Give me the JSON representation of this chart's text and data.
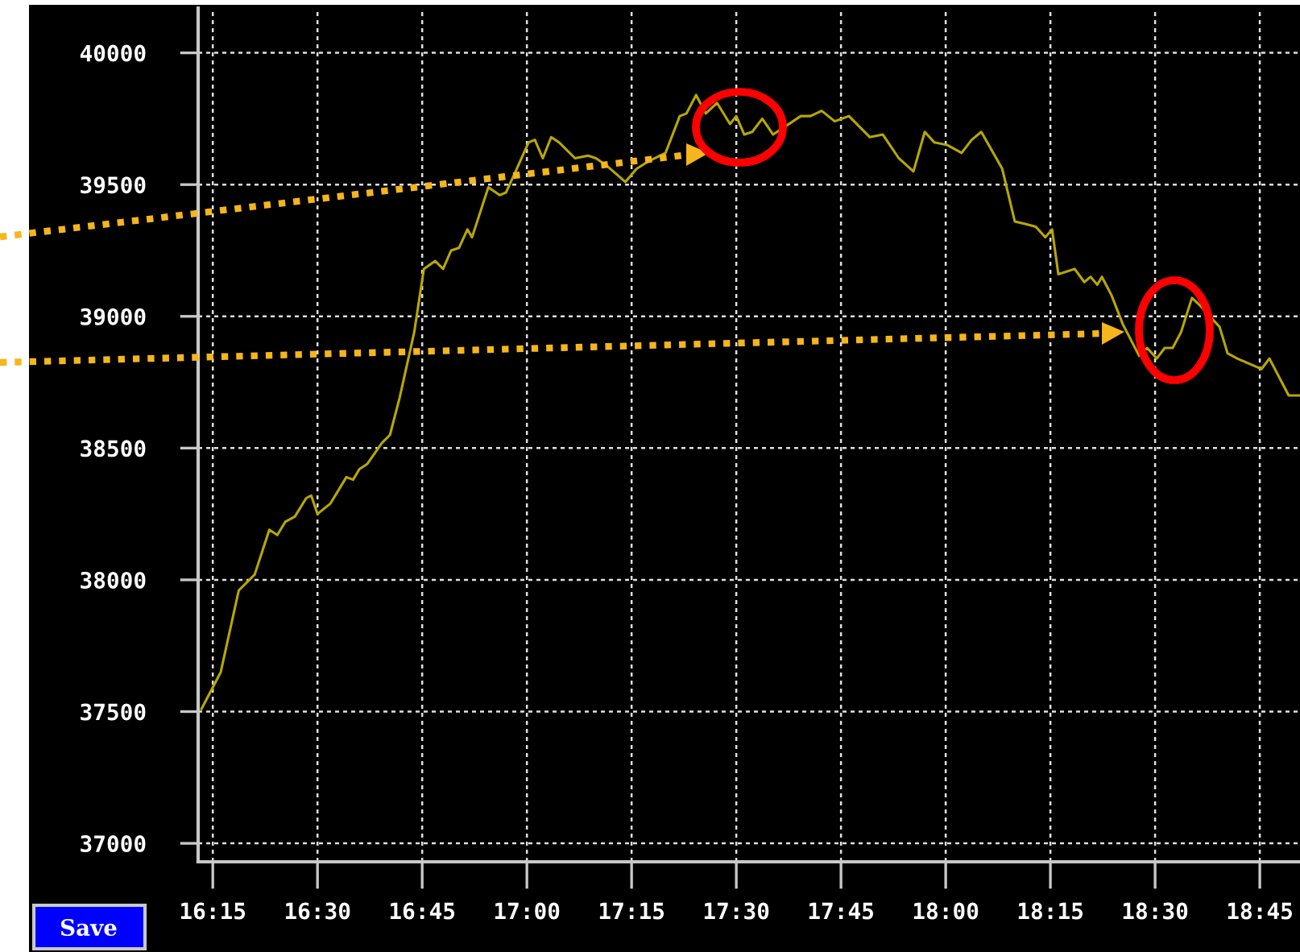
{
  "chart_data": {
    "type": "line",
    "grid": true,
    "line_style": "solid",
    "marker": "none",
    "annotations": [
      "Save"
    ],
    "xlim": [
      16.215,
      18.846
    ],
    "ylim": [
      36930,
      40170
    ],
    "xticks": [
      {
        "value": 16.25,
        "label": "16:15"
      },
      {
        "value": 16.5,
        "label": "16:30"
      },
      {
        "value": 16.75,
        "label": "16:45"
      },
      {
        "value": 17.0,
        "label": "17:00"
      },
      {
        "value": 17.25,
        "label": "17:15"
      },
      {
        "value": 17.5,
        "label": "17:30"
      },
      {
        "value": 17.75,
        "label": "17:45"
      },
      {
        "value": 18.0,
        "label": "18:00"
      },
      {
        "value": 18.25,
        "label": "18:15"
      },
      {
        "value": 18.5,
        "label": "18:30"
      },
      {
        "value": 18.75,
        "label": "18:45"
      }
    ],
    "yticks": [
      37000,
      37500,
      38000,
      38500,
      39000,
      39500,
      40000
    ],
    "series": [
      {
        "color": "#b8a800",
        "x": [
          16.223,
          16.269,
          16.312,
          16.35,
          16.385,
          16.404,
          16.423,
          16.446,
          16.473,
          16.485,
          16.5,
          16.531,
          16.569,
          16.585,
          16.6,
          16.619,
          16.654,
          16.673,
          16.696,
          16.731,
          16.754,
          16.781,
          16.8,
          16.819,
          16.838,
          16.858,
          16.869,
          16.908,
          16.935,
          16.95,
          16.973,
          17.004,
          17.019,
          17.038,
          17.058,
          17.077,
          17.115,
          17.146,
          17.165,
          17.192,
          17.235,
          17.262,
          17.292,
          17.331,
          17.365,
          17.381,
          17.404,
          17.427,
          17.454,
          17.485,
          17.5,
          17.519,
          17.538,
          17.562,
          17.588,
          17.654,
          17.677,
          17.704,
          17.735,
          17.769,
          17.819,
          17.85,
          17.888,
          17.923,
          17.95,
          17.973,
          18.004,
          18.038,
          18.062,
          18.085,
          18.135,
          18.165,
          18.192,
          18.215,
          18.238,
          18.254,
          18.269,
          18.308,
          18.331,
          18.346,
          18.362,
          18.373,
          18.396,
          18.423,
          18.462,
          18.481,
          18.504,
          18.523,
          18.542,
          18.562,
          18.588,
          18.608,
          18.654,
          18.673,
          18.696,
          18.754,
          18.773,
          18.819,
          18.846
        ],
        "values": [
          37510,
          37650,
          37960,
          38020,
          38190,
          38170,
          38220,
          38240,
          38310,
          38320,
          38250,
          38290,
          38390,
          38380,
          38420,
          38440,
          38520,
          38550,
          38690,
          38940,
          39180,
          39210,
          39180,
          39250,
          39260,
          39330,
          39300,
          39490,
          39460,
          39470,
          39550,
          39660,
          39670,
          39600,
          39680,
          39660,
          39600,
          39610,
          39600,
          39570,
          39510,
          39560,
          39590,
          39620,
          39760,
          39770,
          39840,
          39770,
          39810,
          39730,
          39760,
          39690,
          39700,
          39750,
          39690,
          39760,
          39760,
          39780,
          39740,
          39760,
          39680,
          39690,
          39600,
          39550,
          39700,
          39660,
          39650,
          39620,
          39670,
          39700,
          39560,
          39360,
          39350,
          39340,
          39300,
          39330,
          39160,
          39180,
          39130,
          39150,
          39120,
          39150,
          39080,
          38970,
          38850,
          38880,
          38840,
          38880,
          38880,
          38940,
          39070,
          39040,
          38960,
          38860,
          38840,
          38800,
          38840,
          38700,
          38700
        ]
      }
    ]
  }
}
